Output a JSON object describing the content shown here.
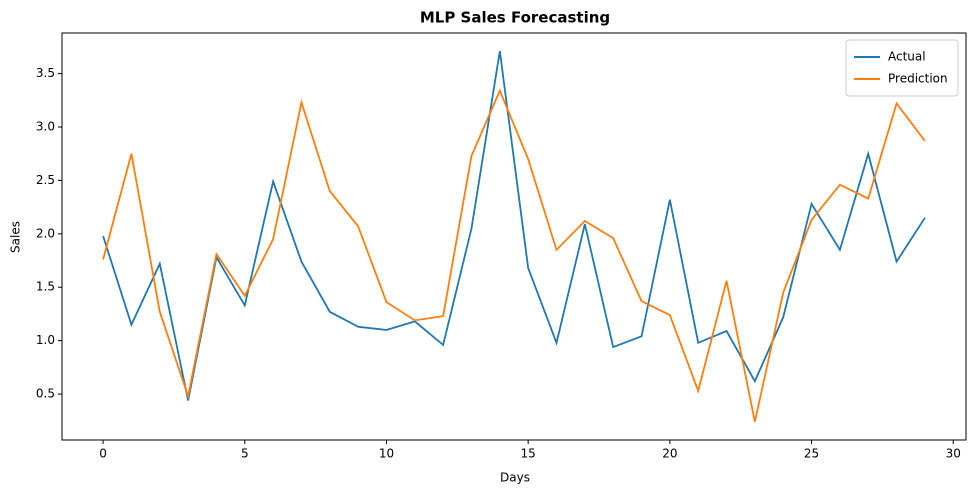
{
  "chart_data": {
    "type": "line",
    "title": "MLP Sales Forecasting",
    "xlabel": "Days",
    "ylabel": "Sales",
    "x": [
      0,
      1,
      2,
      3,
      4,
      5,
      6,
      7,
      8,
      9,
      10,
      11,
      12,
      13,
      14,
      15,
      16,
      17,
      18,
      19,
      20,
      21,
      22,
      23,
      24,
      25,
      26,
      27,
      28,
      29
    ],
    "series": [
      {
        "name": "Actual",
        "color": "#1f77b4",
        "values": [
          1.98,
          1.15,
          1.72,
          0.44,
          1.78,
          1.33,
          2.49,
          1.74,
          1.27,
          1.13,
          1.1,
          1.18,
          0.96,
          2.05,
          3.71,
          1.68,
          0.98,
          2.09,
          0.94,
          1.04,
          2.32,
          0.98,
          1.09,
          0.62,
          1.22,
          2.28,
          1.85,
          2.75,
          1.74,
          2.15
        ]
      },
      {
        "name": "Prediction",
        "color": "#ff7f0e",
        "values": [
          1.76,
          2.75,
          1.27,
          0.48,
          1.81,
          1.42,
          1.95,
          3.23,
          2.4,
          2.07,
          1.36,
          1.19,
          1.23,
          2.73,
          3.34,
          2.7,
          1.85,
          2.12,
          1.96,
          1.37,
          1.24,
          0.53,
          1.56,
          0.24,
          1.45,
          2.13,
          2.46,
          2.33,
          3.22,
          2.87
        ]
      }
    ],
    "xlim": [
      -1.45,
      30.45
    ],
    "xticks": [
      0,
      5,
      10,
      15,
      20,
      25,
      30
    ],
    "ylim": [
      0.07,
      3.88
    ],
    "yticks": [
      0.5,
      {
        "value": 1,
        "label": "1.0"
      },
      1.5,
      {
        "value": 2,
        "label": "2.0"
      },
      2.5,
      {
        "value": 3,
        "label": "3.0"
      },
      3.5
    ],
    "legend": "upper right",
    "grid": false
  }
}
